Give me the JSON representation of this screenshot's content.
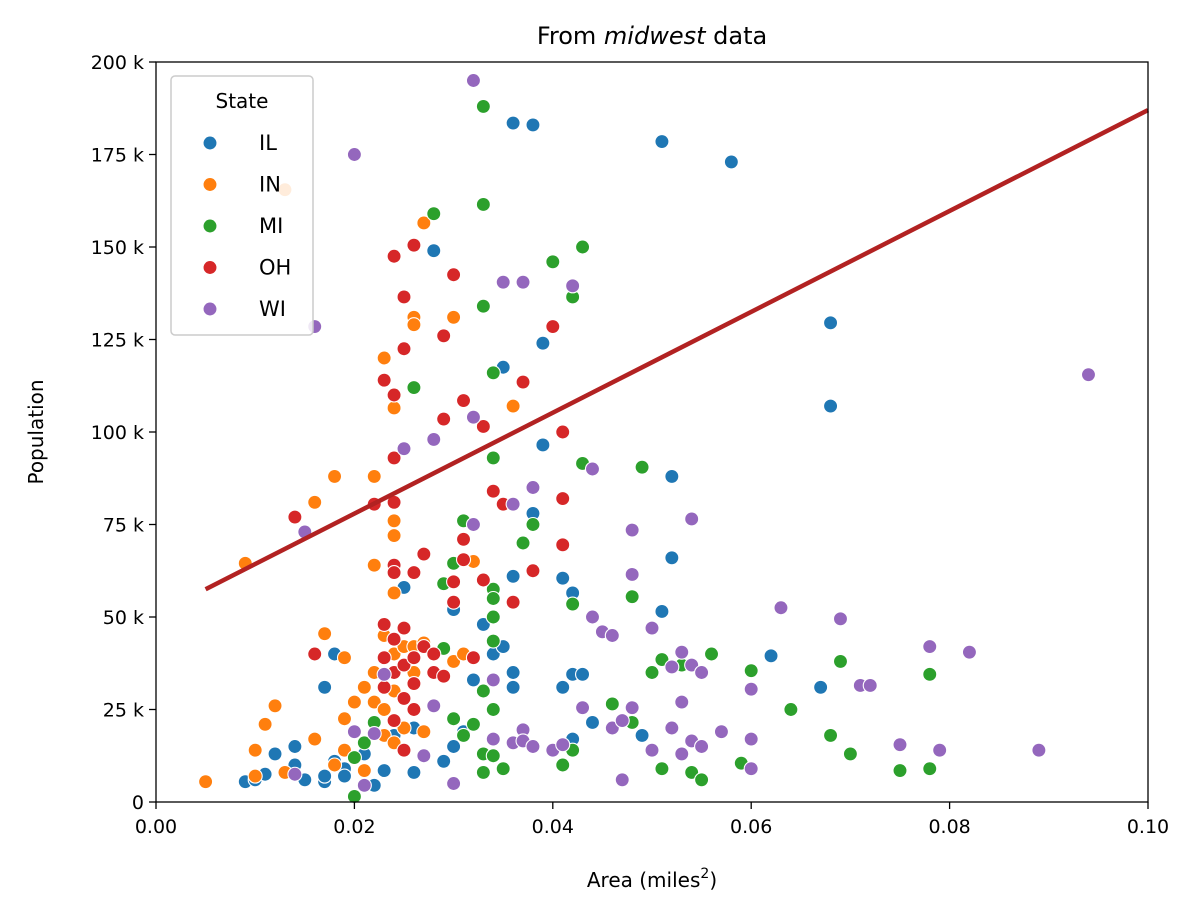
{
  "chart_data": {
    "type": "scatter",
    "title_prefix": "From ",
    "title_italic": "midwest",
    "title_suffix": " data",
    "xlabel": "Area (miles",
    "xlabel_sup": "2",
    "xlabel_end": ")",
    "ylabel": "Population",
    "xlim": [
      0.0,
      0.1
    ],
    "ylim": [
      0,
      200000
    ],
    "x_ticks": [
      0.0,
      0.02,
      0.04,
      0.06,
      0.08,
      0.1
    ],
    "x_tick_labels": [
      "0.00",
      "0.02",
      "0.04",
      "0.06",
      "0.08",
      "0.10"
    ],
    "y_ticks": [
      0,
      25000,
      50000,
      75000,
      100000,
      125000,
      150000,
      175000,
      200000
    ],
    "y_tick_labels": [
      "0",
      "25 k",
      "50 k",
      "75 k",
      "100 k",
      "125 k",
      "150 k",
      "175 k",
      "200 k"
    ],
    "legend_title": "State",
    "legend_position": "upper-left",
    "trend_line": {
      "x": [
        0.005,
        0.1
      ],
      "y": [
        57500,
        187000
      ],
      "color": "#b22222"
    },
    "series": [
      {
        "name": "IL",
        "color": "#1f77b4",
        "points": [
          [
            0.009,
            5500
          ],
          [
            0.01,
            6000
          ],
          [
            0.011,
            7500
          ],
          [
            0.012,
            13000
          ],
          [
            0.014,
            15000
          ],
          [
            0.014,
            10000
          ],
          [
            0.015,
            6000
          ],
          [
            0.017,
            5500
          ],
          [
            0.017,
            7000
          ],
          [
            0.017,
            31000
          ],
          [
            0.018,
            40000
          ],
          [
            0.018,
            11000
          ],
          [
            0.019,
            9000
          ],
          [
            0.019,
            7000
          ],
          [
            0.02,
            12000
          ],
          [
            0.021,
            13000
          ],
          [
            0.022,
            4500
          ],
          [
            0.023,
            8500
          ],
          [
            0.024,
            18000
          ],
          [
            0.025,
            58000
          ],
          [
            0.026,
            8000
          ],
          [
            0.026,
            20000
          ],
          [
            0.028,
            149000
          ],
          [
            0.029,
            11000
          ],
          [
            0.03,
            15000
          ],
          [
            0.03,
            52000
          ],
          [
            0.031,
            19000
          ],
          [
            0.032,
            33000
          ],
          [
            0.033,
            48000
          ],
          [
            0.034,
            40000
          ],
          [
            0.035,
            42000
          ],
          [
            0.035,
            117500
          ],
          [
            0.036,
            183500
          ],
          [
            0.036,
            61000
          ],
          [
            0.036,
            31000
          ],
          [
            0.036,
            35000
          ],
          [
            0.038,
            183000
          ],
          [
            0.038,
            78000
          ],
          [
            0.039,
            124000
          ],
          [
            0.039,
            96500
          ],
          [
            0.041,
            60500
          ],
          [
            0.041,
            31000
          ],
          [
            0.042,
            56500
          ],
          [
            0.042,
            34500
          ],
          [
            0.042,
            17000
          ],
          [
            0.043,
            34500
          ],
          [
            0.044,
            21500
          ],
          [
            0.049,
            18000
          ],
          [
            0.051,
            178500
          ],
          [
            0.051,
            51500
          ],
          [
            0.052,
            66000
          ],
          [
            0.052,
            88000
          ],
          [
            0.058,
            173000
          ],
          [
            0.062,
            39500
          ],
          [
            0.067,
            31000
          ],
          [
            0.068,
            129500
          ],
          [
            0.068,
            107000
          ]
        ]
      },
      {
        "name": "IN",
        "color": "#ff7f0e",
        "points": [
          [
            0.005,
            5500
          ],
          [
            0.009,
            64500
          ],
          [
            0.01,
            14000
          ],
          [
            0.01,
            7000
          ],
          [
            0.011,
            21000
          ],
          [
            0.012,
            26000
          ],
          [
            0.013,
            165500
          ],
          [
            0.013,
            8000
          ],
          [
            0.016,
            81000
          ],
          [
            0.016,
            17000
          ],
          [
            0.017,
            45500
          ],
          [
            0.018,
            88000
          ],
          [
            0.018,
            10000
          ],
          [
            0.019,
            39000
          ],
          [
            0.019,
            22500
          ],
          [
            0.019,
            14000
          ],
          [
            0.02,
            27000
          ],
          [
            0.021,
            31000
          ],
          [
            0.021,
            8500
          ],
          [
            0.022,
            88000
          ],
          [
            0.022,
            64000
          ],
          [
            0.022,
            35000
          ],
          [
            0.022,
            27000
          ],
          [
            0.023,
            120000
          ],
          [
            0.023,
            45000
          ],
          [
            0.023,
            25000
          ],
          [
            0.023,
            18000
          ],
          [
            0.024,
            106500
          ],
          [
            0.024,
            76000
          ],
          [
            0.024,
            72000
          ],
          [
            0.024,
            56500
          ],
          [
            0.024,
            44000
          ],
          [
            0.024,
            40000
          ],
          [
            0.024,
            30000
          ],
          [
            0.024,
            16000
          ],
          [
            0.025,
            42000
          ],
          [
            0.025,
            20000
          ],
          [
            0.026,
            131000
          ],
          [
            0.026,
            129000
          ],
          [
            0.026,
            35000
          ],
          [
            0.026,
            42000
          ],
          [
            0.027,
            156500
          ],
          [
            0.027,
            43000
          ],
          [
            0.027,
            19000
          ],
          [
            0.03,
            131000
          ],
          [
            0.03,
            38000
          ],
          [
            0.031,
            40000
          ],
          [
            0.032,
            65000
          ],
          [
            0.036,
            107000
          ]
        ]
      },
      {
        "name": "MI",
        "color": "#2ca02c",
        "points": [
          [
            0.02,
            1500
          ],
          [
            0.02,
            12000
          ],
          [
            0.021,
            16000
          ],
          [
            0.022,
            21500
          ],
          [
            0.026,
            112000
          ],
          [
            0.028,
            159000
          ],
          [
            0.029,
            59000
          ],
          [
            0.029,
            41500
          ],
          [
            0.03,
            64500
          ],
          [
            0.03,
            22500
          ],
          [
            0.031,
            76000
          ],
          [
            0.031,
            18000
          ],
          [
            0.032,
            21000
          ],
          [
            0.033,
            188000
          ],
          [
            0.033,
            161500
          ],
          [
            0.033,
            134000
          ],
          [
            0.033,
            30000
          ],
          [
            0.033,
            13000
          ],
          [
            0.033,
            8000
          ],
          [
            0.034,
            116000
          ],
          [
            0.034,
            93000
          ],
          [
            0.034,
            57500
          ],
          [
            0.034,
            55000
          ],
          [
            0.034,
            50000
          ],
          [
            0.034,
            43500
          ],
          [
            0.034,
            25000
          ],
          [
            0.034,
            12500
          ],
          [
            0.035,
            9000
          ],
          [
            0.037,
            70000
          ],
          [
            0.038,
            75000
          ],
          [
            0.04,
            146000
          ],
          [
            0.041,
            10000
          ],
          [
            0.042,
            136500
          ],
          [
            0.042,
            53500
          ],
          [
            0.042,
            14000
          ],
          [
            0.043,
            150000
          ],
          [
            0.043,
            91500
          ],
          [
            0.046,
            26500
          ],
          [
            0.048,
            55500
          ],
          [
            0.048,
            21500
          ],
          [
            0.049,
            90500
          ],
          [
            0.05,
            35000
          ],
          [
            0.051,
            38500
          ],
          [
            0.051,
            9000
          ],
          [
            0.053,
            37000
          ],
          [
            0.054,
            8000
          ],
          [
            0.055,
            6000
          ],
          [
            0.056,
            40000
          ],
          [
            0.059,
            10500
          ],
          [
            0.06,
            35500
          ],
          [
            0.064,
            25000
          ],
          [
            0.068,
            18000
          ],
          [
            0.069,
            38000
          ],
          [
            0.07,
            13000
          ],
          [
            0.075,
            8500
          ],
          [
            0.078,
            34500
          ],
          [
            0.078,
            9000
          ]
        ]
      },
      {
        "name": "OH",
        "color": "#d62728",
        "points": [
          [
            0.014,
            77000
          ],
          [
            0.016,
            40000
          ],
          [
            0.022,
            80500
          ],
          [
            0.023,
            114000
          ],
          [
            0.023,
            48000
          ],
          [
            0.023,
            39000
          ],
          [
            0.023,
            31000
          ],
          [
            0.024,
            147500
          ],
          [
            0.024,
            110000
          ],
          [
            0.024,
            93000
          ],
          [
            0.024,
            81000
          ],
          [
            0.024,
            64000
          ],
          [
            0.024,
            62000
          ],
          [
            0.024,
            44000
          ],
          [
            0.024,
            35000
          ],
          [
            0.024,
            22000
          ],
          [
            0.025,
            136500
          ],
          [
            0.025,
            122500
          ],
          [
            0.025,
            47000
          ],
          [
            0.025,
            37000
          ],
          [
            0.025,
            28000
          ],
          [
            0.025,
            14000
          ],
          [
            0.026,
            150500
          ],
          [
            0.026,
            62000
          ],
          [
            0.026,
            39000
          ],
          [
            0.026,
            32000
          ],
          [
            0.026,
            25000
          ],
          [
            0.027,
            67000
          ],
          [
            0.027,
            42000
          ],
          [
            0.028,
            40000
          ],
          [
            0.028,
            35000
          ],
          [
            0.029,
            126000
          ],
          [
            0.029,
            103500
          ],
          [
            0.029,
            34000
          ],
          [
            0.03,
            142500
          ],
          [
            0.03,
            59500
          ],
          [
            0.03,
            54000
          ],
          [
            0.031,
            108500
          ],
          [
            0.031,
            71000
          ],
          [
            0.031,
            65500
          ],
          [
            0.032,
            39000
          ],
          [
            0.033,
            101500
          ],
          [
            0.033,
            60000
          ],
          [
            0.034,
            84000
          ],
          [
            0.035,
            80500
          ],
          [
            0.036,
            54000
          ],
          [
            0.037,
            113500
          ],
          [
            0.038,
            62500
          ],
          [
            0.04,
            128500
          ],
          [
            0.041,
            100000
          ],
          [
            0.041,
            82000
          ],
          [
            0.041,
            69500
          ]
        ]
      },
      {
        "name": "WI",
        "color": "#9467bd",
        "points": [
          [
            0.014,
            7500
          ],
          [
            0.015,
            73000
          ],
          [
            0.016,
            128500
          ],
          [
            0.02,
            175000
          ],
          [
            0.02,
            19000
          ],
          [
            0.021,
            4500
          ],
          [
            0.022,
            18500
          ],
          [
            0.023,
            34500
          ],
          [
            0.025,
            95500
          ],
          [
            0.027,
            12500
          ],
          [
            0.028,
            98000
          ],
          [
            0.028,
            26000
          ],
          [
            0.03,
            5000
          ],
          [
            0.032,
            195000
          ],
          [
            0.032,
            104000
          ],
          [
            0.032,
            75000
          ],
          [
            0.034,
            33000
          ],
          [
            0.034,
            17000
          ],
          [
            0.035,
            140500
          ],
          [
            0.036,
            80500
          ],
          [
            0.036,
            16000
          ],
          [
            0.037,
            140500
          ],
          [
            0.037,
            19500
          ],
          [
            0.037,
            16500
          ],
          [
            0.038,
            85000
          ],
          [
            0.038,
            15000
          ],
          [
            0.04,
            14000
          ],
          [
            0.041,
            15500
          ],
          [
            0.042,
            139500
          ],
          [
            0.043,
            25500
          ],
          [
            0.044,
            90000
          ],
          [
            0.044,
            50000
          ],
          [
            0.045,
            46000
          ],
          [
            0.046,
            45000
          ],
          [
            0.046,
            20000
          ],
          [
            0.047,
            6000
          ],
          [
            0.047,
            22000
          ],
          [
            0.048,
            73500
          ],
          [
            0.048,
            61500
          ],
          [
            0.048,
            25500
          ],
          [
            0.05,
            47000
          ],
          [
            0.05,
            14000
          ],
          [
            0.052,
            36500
          ],
          [
            0.052,
            20000
          ],
          [
            0.053,
            40500
          ],
          [
            0.053,
            27000
          ],
          [
            0.053,
            13000
          ],
          [
            0.054,
            76500
          ],
          [
            0.054,
            37000
          ],
          [
            0.054,
            16500
          ],
          [
            0.055,
            35000
          ],
          [
            0.055,
            15000
          ],
          [
            0.057,
            19000
          ],
          [
            0.06,
            30500
          ],
          [
            0.06,
            17000
          ],
          [
            0.06,
            9000
          ],
          [
            0.063,
            52500
          ],
          [
            0.069,
            49500
          ],
          [
            0.071,
            31500
          ],
          [
            0.072,
            31500
          ],
          [
            0.075,
            15500
          ],
          [
            0.078,
            42000
          ],
          [
            0.079,
            14000
          ],
          [
            0.082,
            40500
          ],
          [
            0.089,
            14000
          ],
          [
            0.094,
            115500
          ]
        ]
      }
    ]
  }
}
